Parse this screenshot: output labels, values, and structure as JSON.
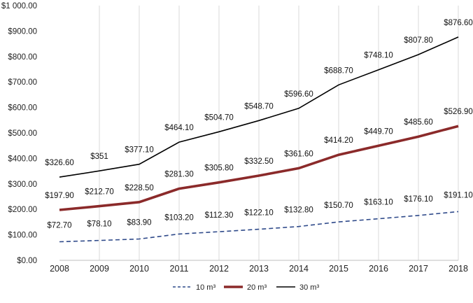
{
  "chart_data": {
    "type": "line",
    "title": "",
    "xlabel": "",
    "ylabel": "",
    "categories": [
      "2008",
      "2009",
      "2010",
      "2011",
      "2012",
      "2013",
      "2014",
      "2015",
      "2016",
      "2017",
      "2018"
    ],
    "ylim": [
      0,
      1000
    ],
    "y_ticks": [
      0,
      100,
      200,
      300,
      400,
      500,
      600,
      700,
      800,
      900,
      1000
    ],
    "y_tick_labels": [
      "$0.00",
      "$100.00",
      "$200.00",
      "$300.00",
      "$400.00",
      "$500.00",
      "$600.00",
      "$700.00",
      "$800.00",
      "$900.00",
      "$1 000.00"
    ],
    "grid": "vertical",
    "legend_position": "bottom-center",
    "series": [
      {
        "name": "10 m³",
        "style": "dashed",
        "color": "#2f4a8a",
        "values": [
          72.7,
          78.1,
          83.9,
          103.2,
          112.3,
          122.1,
          132.8,
          150.7,
          163.1,
          176.1,
          191.1
        ],
        "labels": [
          "$72.70",
          "$78.10",
          "$83.90",
          "$103.20",
          "$112.30",
          "$122.10",
          "$132.80",
          "$150.70",
          "$163.10",
          "$176.10",
          "$191.10"
        ]
      },
      {
        "name": "20 m³",
        "style": "solid-thick",
        "color": "#8b2a2a",
        "values": [
          197.9,
          212.7,
          228.5,
          281.3,
          305.8,
          332.5,
          361.6,
          414.2,
          449.7,
          485.6,
          526.9
        ],
        "labels": [
          "$197.90",
          "$212.70",
          "$228.50",
          "$281.30",
          "$305.80",
          "$332.50",
          "$361.60",
          "$414.20",
          "$449.70",
          "$485.60",
          "$526.90"
        ]
      },
      {
        "name": "30 m³",
        "style": "solid",
        "color": "#000000",
        "values": [
          326.6,
          351,
          377.1,
          464.1,
          504.7,
          548.7,
          596.6,
          688.7,
          748.1,
          807.8,
          876.6
        ],
        "labels": [
          "$326.60",
          "$351",
          "$377.10",
          "$464.10",
          "$504.70",
          "$548.70",
          "$596.60",
          "$688.70",
          "$748.10",
          "$807.80",
          "$876.60"
        ]
      }
    ]
  }
}
